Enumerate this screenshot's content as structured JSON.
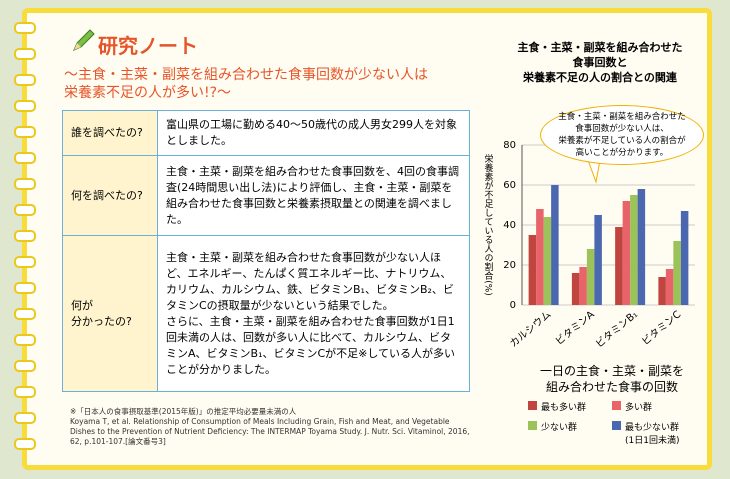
{
  "notebook": {
    "header": "研究ノート",
    "subtitle": "〜主食・主菜・副菜を組み合わせた食事回数が少ない人は\n栄養素不足の人が多い!?〜",
    "table": {
      "rows": [
        [
          "誰を調べたの?",
          "富山県の工場に勤める40〜50歳代の成人男女299人を対象としました。"
        ],
        [
          "何を調べたの?",
          "主食・主菜・副菜を組み合わせた食事回数を、4回の食事調査(24時間思い出し法)により評価し、主食・主菜・副菜を組み合わせた食事回数と栄養素摂取量との関連を調べました。"
        ],
        [
          "何が\n分かったの?",
          "主食・主菜・副菜を組み合わせた食事回数が少ない人ほど、エネルギー、たんぱく質エネルギー比、ナトリウム、カリウム、カルシウム、鉄、ビタミンB₁、ビタミンB₂、ビタミンCの摂取量が少ないという結果でした。\nさらに、主食・主菜・副菜を組み合わせた食事回数が1日1回未満の人は、回数が多い人に比べて、カルシウム、ビタミンA、ビタミンB₁、ビタミンCが不足※している人が多いことが分かりました。"
        ]
      ]
    },
    "footnote": "※「日本人の食事摂取基準(2015年版)」の推定平均必要量未満の人\nKoyama T, et al. Relationship of Consumption of Meals Including Grain, Fish and Meat, and Vegetable Dishes to the Prevention of Nutrient Deficiency: The INTERMAP Toyama Study. J. Nutr. Sci. Vitaminol, 2016, 62, p.101-107.[論文番号3]"
  },
  "chart_data": {
    "type": "bar",
    "title": "主食・主菜・副菜を組み合わせた\n食事回数と\n栄養素不足の人の割合との関連",
    "ylabel": "栄養素が不足している人の割合(%)",
    "annotation": "主食・主菜・副菜を組み合わせた\n食事回数が少ない人は、\n栄養素が不足している人の割合が\n高いことが分かります。",
    "legend_title": "一日の主食・主菜・副菜を\n組み合わせた食事の回数",
    "categories": [
      "カルシウム",
      "ビタミンA",
      "ビタミンB₁",
      "ビタミンC"
    ],
    "series": [
      {
        "name": "最も多い群",
        "color": "#c0453f",
        "values": [
          35,
          16,
          39,
          14
        ]
      },
      {
        "name": "多い群",
        "color": "#e8636a",
        "values": [
          48,
          19,
          52,
          18
        ]
      },
      {
        "name": "少ない群",
        "color": "#9cc25a",
        "values": [
          44,
          28,
          55,
          32
        ]
      },
      {
        "name": "最も少ない群",
        "note": "(1日1回未満)",
        "color": "#4a67b0",
        "values": [
          60,
          45,
          58,
          47
        ]
      }
    ],
    "ylim": [
      0,
      80
    ],
    "yticks": [
      0,
      20,
      40,
      60,
      80
    ],
    "grid": true
  }
}
